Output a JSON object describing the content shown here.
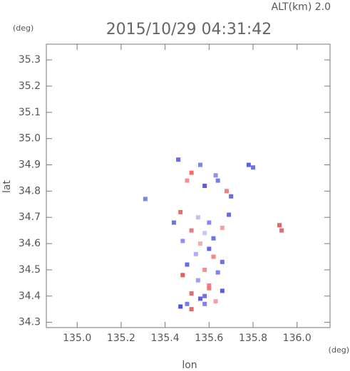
{
  "chart_data": {
    "type": "scatter",
    "title": "2015/10/29 04:31:42",
    "subtitle": "ALT(km) 2.0",
    "ylabel": "lat",
    "yunit": "(deg)",
    "xlabel": "lon",
    "xunit": "(deg)",
    "xlim": [
      134.86,
      136.15
    ],
    "ylim": [
      34.28,
      35.36
    ],
    "xticks": [
      {
        "value": 135.0,
        "label": "135.0"
      },
      {
        "value": 135.2,
        "label": "135.2"
      },
      {
        "value": 135.4,
        "label": "135.4"
      },
      {
        "value": 135.6,
        "label": "135.6"
      },
      {
        "value": 135.8,
        "label": "135.8"
      },
      {
        "value": 136.0,
        "label": "136.0"
      }
    ],
    "yticks": [
      {
        "value": 34.3,
        "label": "34.3"
      },
      34.4,
      34.5,
      34.6,
      34.7,
      34.8,
      34.9,
      {
        "value": 35.0,
        "label": "35.0"
      },
      35.1,
      35.2,
      35.3
    ],
    "x": [
      135.46,
      135.52,
      135.56,
      135.5,
      135.58,
      135.64,
      135.68,
      135.7,
      135.78,
      135.8,
      135.47,
      135.55,
      135.6,
      135.66,
      135.52,
      135.58,
      135.62,
      135.48,
      135.56,
      135.6,
      135.54,
      135.62,
      135.66,
      135.5,
      135.58,
      135.64,
      135.48,
      135.55,
      135.6,
      135.66,
      135.52,
      135.58,
      135.63,
      135.5,
      135.56,
      135.6,
      135.47,
      135.52,
      135.58,
      135.31,
      135.92,
      135.93,
      135.44,
      135.69,
      135.63
    ],
    "y": [
      34.92,
      34.87,
      34.9,
      34.84,
      34.82,
      34.84,
      34.8,
      34.78,
      34.9,
      34.89,
      34.72,
      34.7,
      34.68,
      34.66,
      34.65,
      34.64,
      34.62,
      34.61,
      34.6,
      34.58,
      34.56,
      34.55,
      34.53,
      34.52,
      34.5,
      34.49,
      34.48,
      34.46,
      34.44,
      34.42,
      34.41,
      34.4,
      34.38,
      34.37,
      34.39,
      34.43,
      34.36,
      34.35,
      34.37,
      34.77,
      34.67,
      34.65,
      34.68,
      34.71,
      34.86
    ],
    "colors": [
      "#6a6af0",
      "#f07070",
      "#8080f0",
      "#f09090",
      "#5a5ae6",
      "#7a7af0",
      "#f08080",
      "#6a6ae6",
      "#6060e0",
      "#7070e8",
      "#e07070",
      "#c0c0f5",
      "#8888f0",
      "#f0a0a0",
      "#e08080",
      "#c8c8f8",
      "#7070e8",
      "#9090f0",
      "#f0b0b0",
      "#6666e6",
      "#b0b0f0",
      "#f08888",
      "#7070e8",
      "#6a6ae6",
      "#f09090",
      "#8080f0",
      "#e06060",
      "#a0a0f0",
      "#f08080",
      "#5a5ae0",
      "#e07070",
      "#7070e8",
      "#f0a0a0",
      "#7a7af0",
      "#6060e0",
      "#f07878",
      "#5050d8",
      "#e06868",
      "#8080f0",
      "#8080f0",
      "#f06060",
      "#e07070",
      "#7070e8",
      "#6a6ae6",
      "#9090f0"
    ]
  }
}
